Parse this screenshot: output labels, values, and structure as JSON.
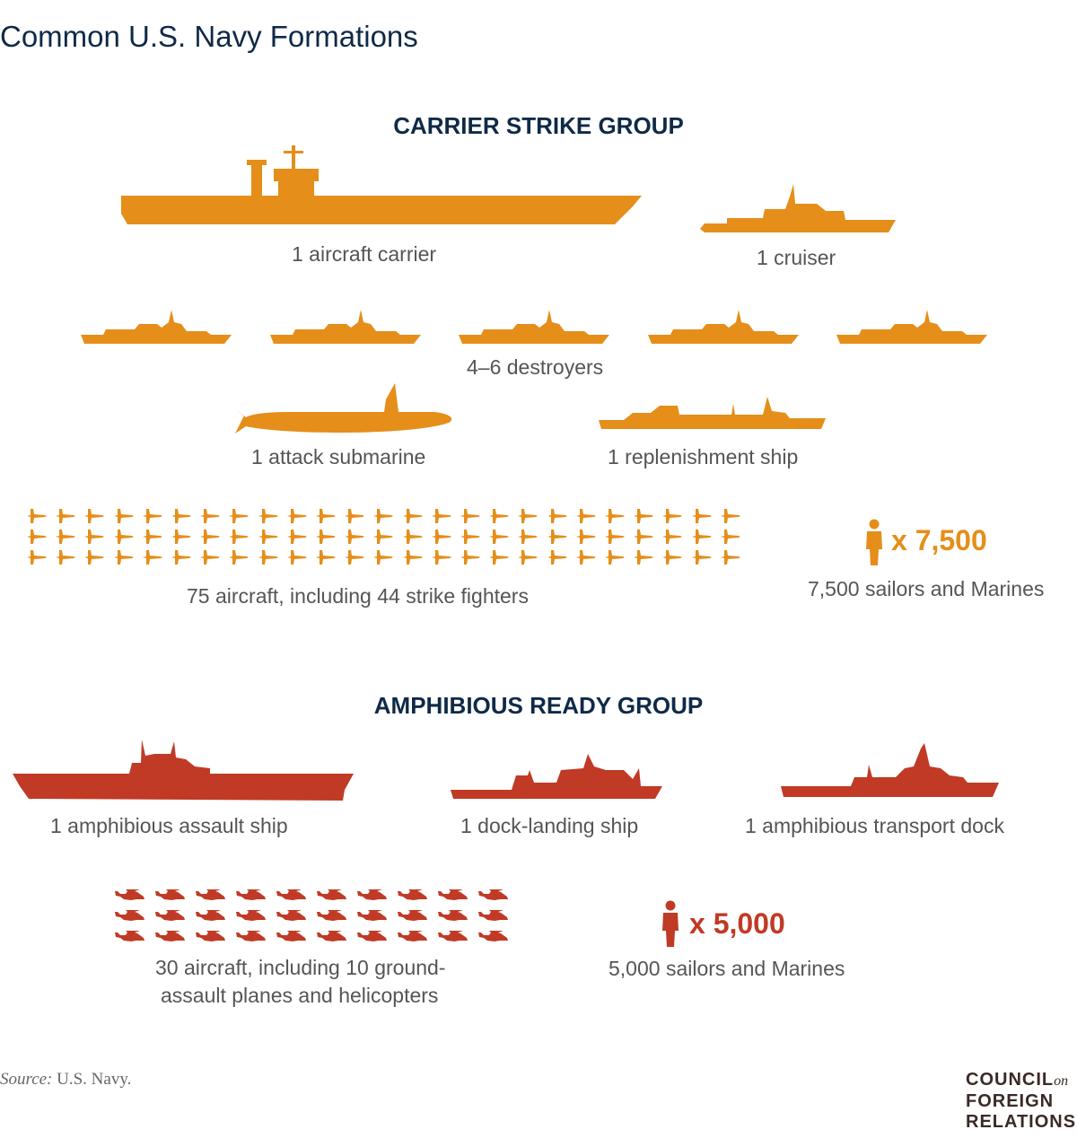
{
  "title": "Common U.S. Navy Formations",
  "colors": {
    "carrier_group": "#E58E1A",
    "amphibious_group": "#C03A25",
    "heading": "#0f2a47"
  },
  "carrier_strike_group": {
    "heading": "CARRIER STRIKE GROUP",
    "aircraft_carrier": "1 aircraft carrier",
    "cruiser": "1 cruiser",
    "destroyers": "4–6 destroyers",
    "destroyer_icon_count": 5,
    "submarine": "1 attack submarine",
    "replenishment": "1 replenishment ship",
    "aircraft_icon_rows": 3,
    "aircraft_icon_cols": 25,
    "aircraft": "75 aircraft, including 44 strike fighters",
    "personnel_multiplier": "x 7,500",
    "personnel": "7,500 sailors and Marines"
  },
  "amphibious_ready_group": {
    "heading": "AMPHIBIOUS READY GROUP",
    "assault_ship": "1 amphibious assault ship",
    "dock_landing": "1 dock-landing ship",
    "transport_dock": "1 amphibious transport dock",
    "aircraft_icon_rows": 3,
    "aircraft_icon_cols": 10,
    "aircraft_line1": "30 aircraft, including 10 ground-",
    "aircraft_line2": "assault planes and helicopters",
    "personnel_multiplier": "x 5,000",
    "personnel": "5,000 sailors and Marines"
  },
  "source_label": "Source:",
  "source": "U.S. Navy.",
  "logo": {
    "line1": "COUNCIL",
    "on": "on",
    "line2": "FOREIGN",
    "line3": "RELATIONS"
  }
}
